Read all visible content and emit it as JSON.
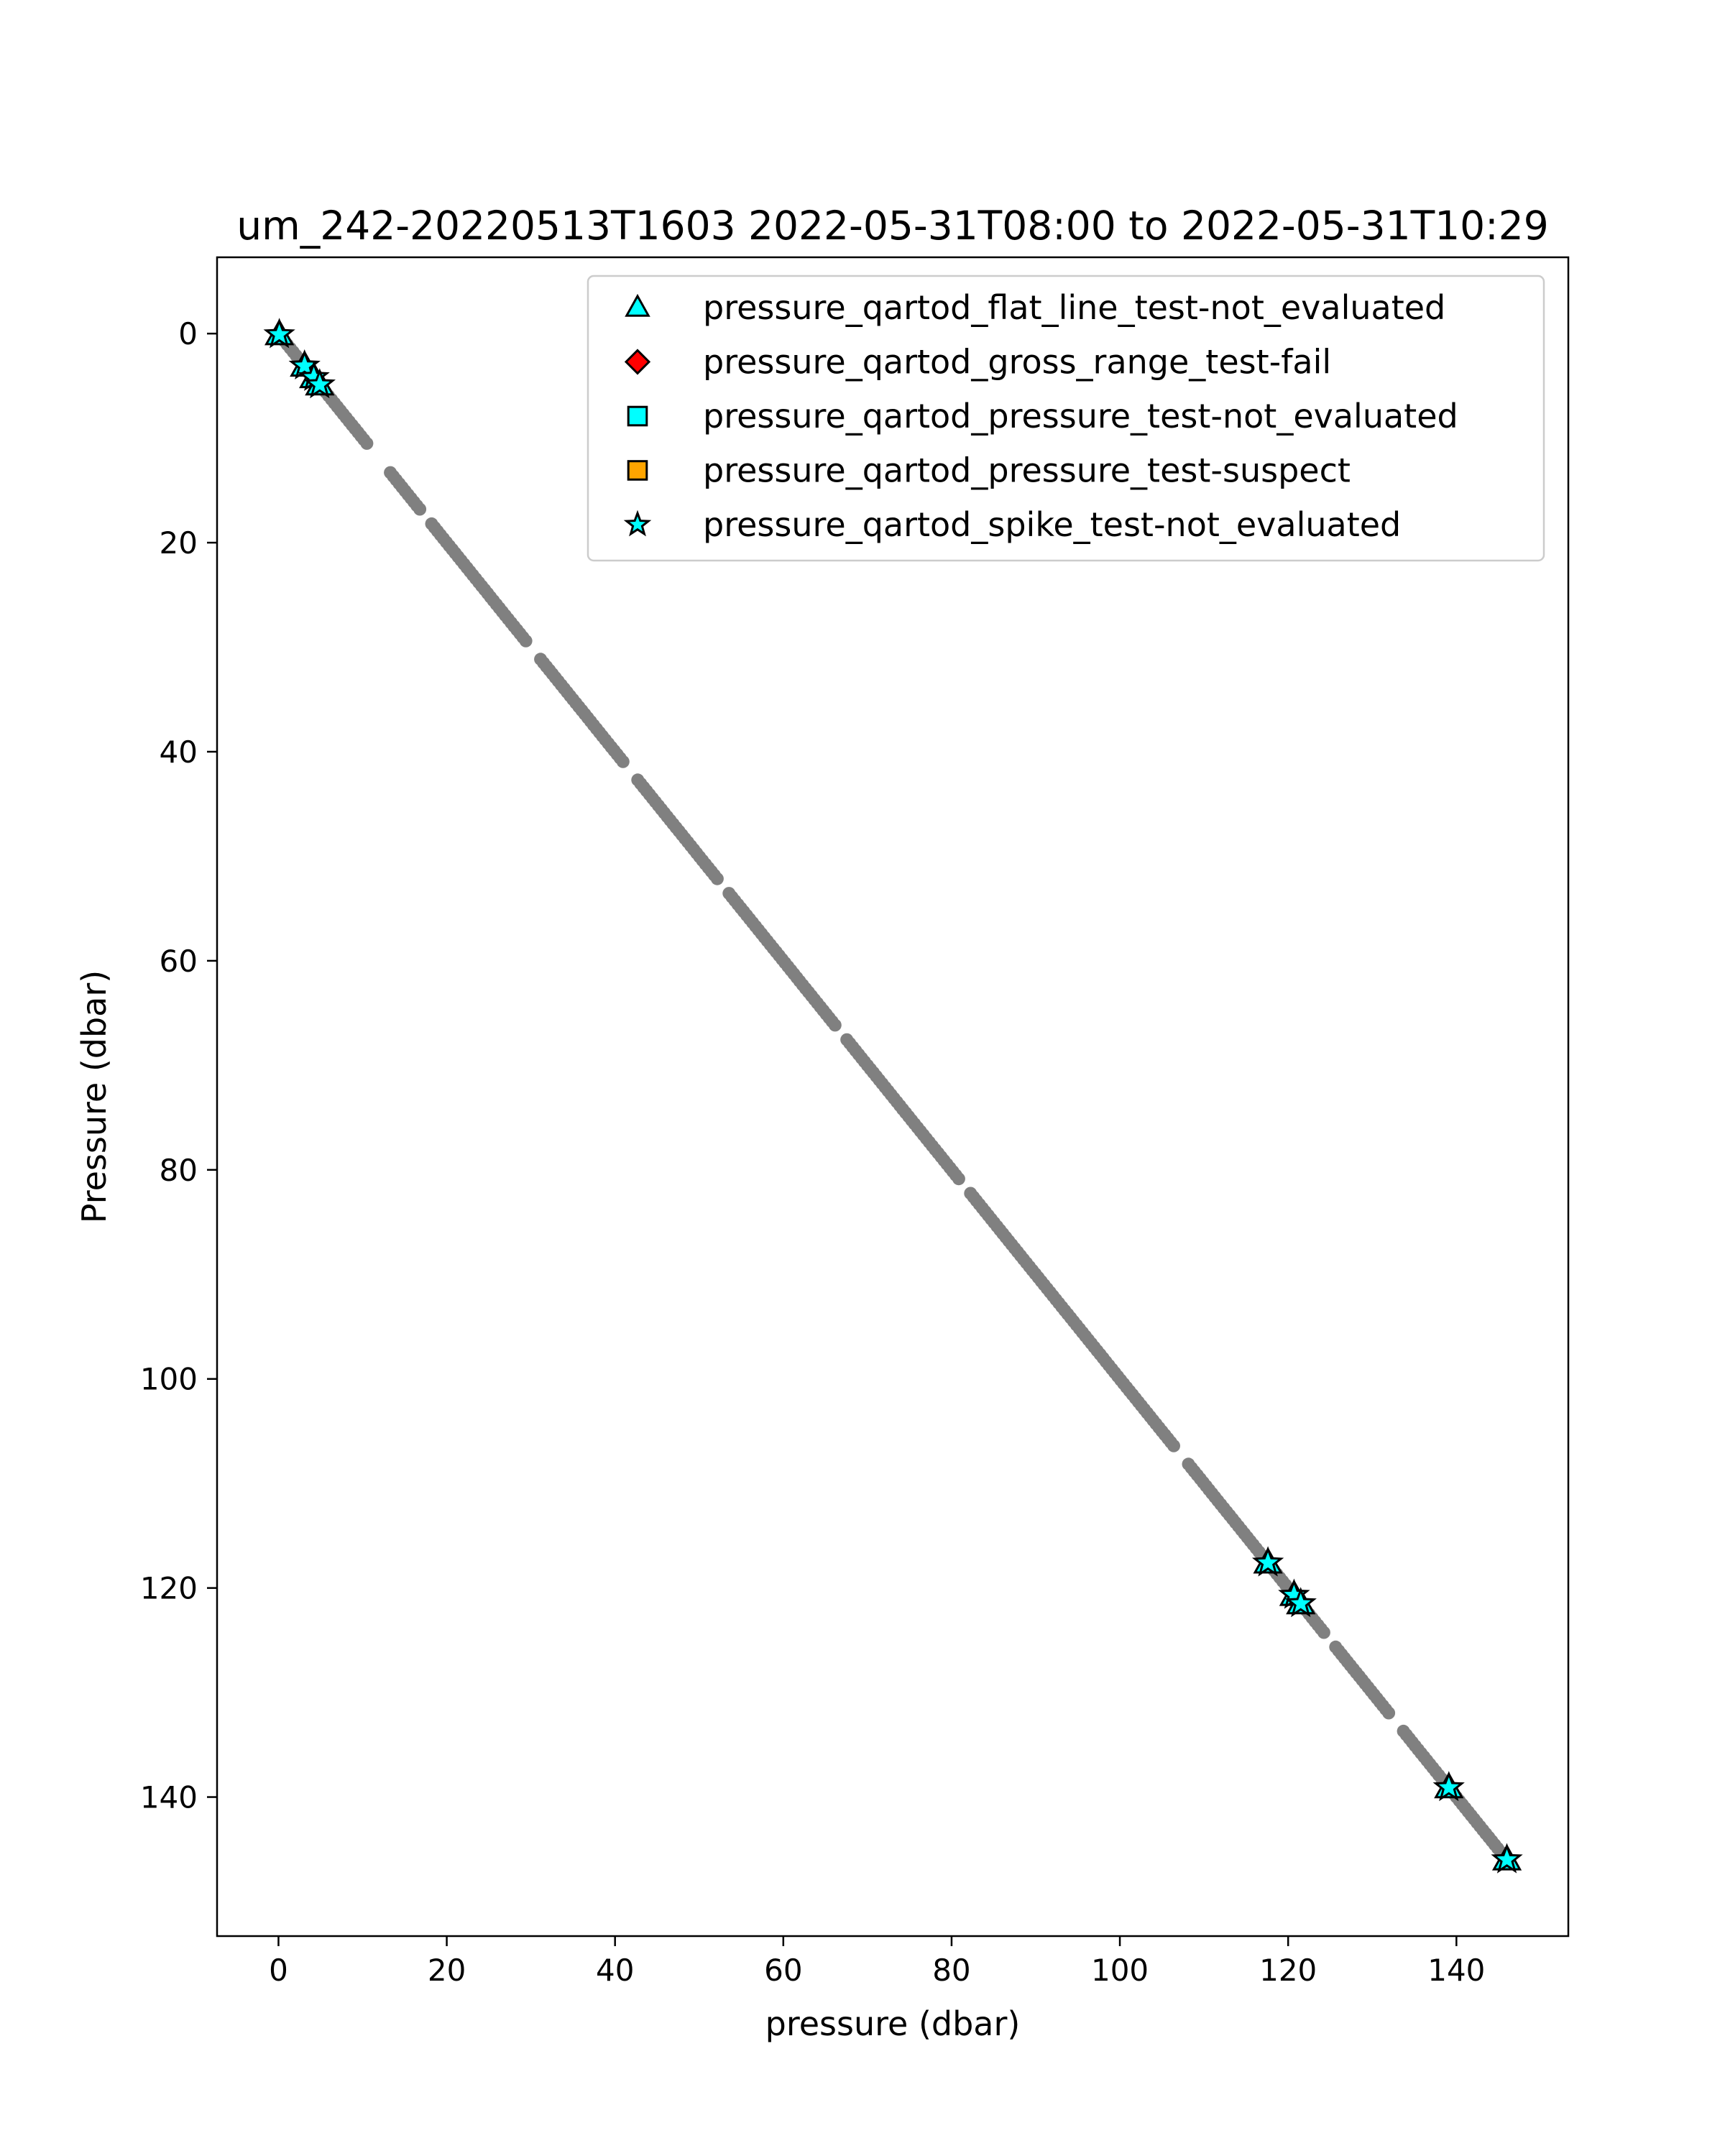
{
  "chart_data": {
    "type": "scatter",
    "title": "um_242-20220513T1603 2022-05-31T08:00 to 2022-05-31T10:29",
    "xlabel": "pressure (dbar)",
    "ylabel": "Pressure (dbar)",
    "xlim": [
      -7.3,
      153.3
    ],
    "ylim": [
      153.3,
      -7.3
    ],
    "y_inverted": true,
    "grid": false,
    "legend_position": "top-right",
    "xticks": [
      0,
      20,
      40,
      60,
      80,
      100,
      120,
      140
    ],
    "yticks": [
      0,
      20,
      40,
      60,
      80,
      100,
      120,
      140
    ],
    "xtick_labels": [
      "0",
      "20",
      "40",
      "60",
      "80",
      "100",
      "120",
      "140"
    ],
    "ytick_labels": [
      "0",
      "20",
      "40",
      "60",
      "80",
      "100",
      "120",
      "140"
    ],
    "base_series": {
      "color": "#808080",
      "marker": "dot",
      "x_range": [
        0,
        146
      ],
      "y_range": [
        0,
        146
      ],
      "relation": "y = x"
    },
    "series": [
      {
        "name": "pressure_qartod_flat_line_test-not_evaluated",
        "marker": "triangle",
        "color": "#00ffff",
        "edge": "#000000",
        "points": [
          [
            0.1,
            0.1
          ],
          [
            3.1,
            3.1
          ],
          [
            4.2,
            4.2
          ],
          [
            4.9,
            4.9
          ],
          [
            117.6,
            117.6
          ],
          [
            120.7,
            120.7
          ],
          [
            121.5,
            121.5
          ],
          [
            139.1,
            139.1
          ],
          [
            146.0,
            146.0
          ]
        ]
      },
      {
        "name": "pressure_qartod_gross_range_test-fail",
        "marker": "diamond",
        "color": "#ff0000",
        "edge": "#000000",
        "points": []
      },
      {
        "name": "pressure_qartod_pressure_test-not_evaluated",
        "marker": "square",
        "color": "#00ffff",
        "edge": "#000000",
        "points": []
      },
      {
        "name": "pressure_qartod_pressure_test-suspect",
        "marker": "square",
        "color": "#ffa500",
        "edge": "#000000",
        "points": []
      },
      {
        "name": "pressure_qartod_spike_test-not_evaluated",
        "marker": "star",
        "color": "#00ffff",
        "edge": "#000000",
        "points": [
          [
            0.1,
            0.1
          ],
          [
            3.1,
            3.1
          ],
          [
            4.2,
            4.2
          ],
          [
            4.9,
            4.9
          ],
          [
            117.6,
            117.6
          ],
          [
            120.7,
            120.7
          ],
          [
            121.5,
            121.5
          ],
          [
            139.1,
            139.1
          ],
          [
            146.0,
            146.0
          ]
        ]
      }
    ]
  }
}
